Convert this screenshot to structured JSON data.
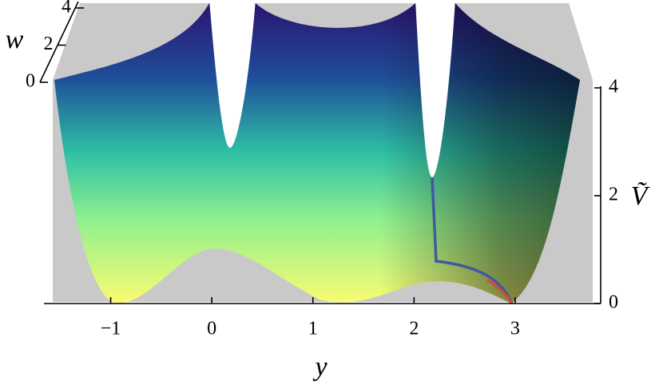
{
  "chart_data": {
    "type": "surface",
    "x_label": "y",
    "y_label": "Ṽ",
    "z_label": "w",
    "xlim": [
      -1.66,
      3.83
    ],
    "xticks": [
      {
        "value": -1,
        "label": "−1"
      },
      0,
      1,
      2,
      3
    ],
    "ylim": [
      0,
      4
    ],
    "yticks": [
      0,
      2,
      4
    ],
    "zlim": [
      0,
      4
    ],
    "zticks": [
      0,
      2,
      4
    ]
  }
}
